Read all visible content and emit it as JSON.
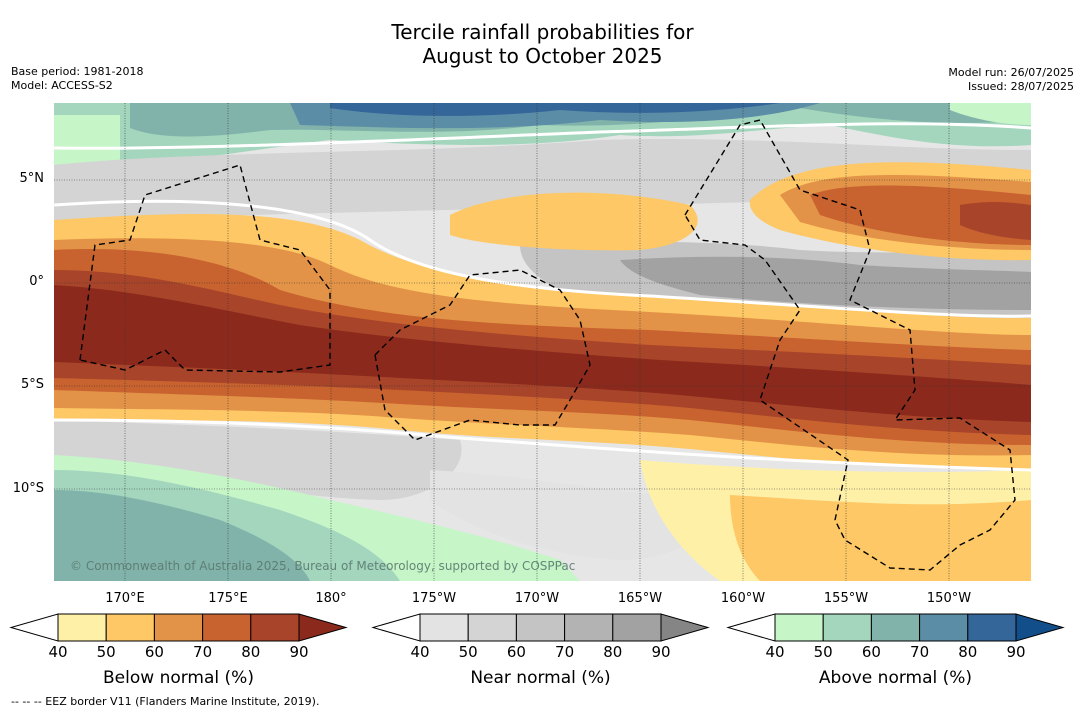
{
  "header": {
    "title_line1": "Tercile rainfall probabilities for",
    "title_line2": "August to October 2025",
    "base_period": "Base period: 1981-2018",
    "model": "Model: ACCESS-S2",
    "model_run": "Model run: 26/07/2025",
    "issued": "Issued: 28/07/2025"
  },
  "map": {
    "lat_labels": [
      "5°N",
      "0°",
      "5°S",
      "10°S"
    ],
    "lon_labels": [
      "170°E",
      "175°E",
      "180°",
      "175°W",
      "170°W",
      "165°W",
      "160°W",
      "155°W",
      "150°W"
    ],
    "copyright": "© Commonwealth of Australia 2025, Bureau of Meteorology, supported by COSPPac"
  },
  "colorbars": [
    {
      "title": "Below normal (%)",
      "ticks": [
        "40",
        "50",
        "60",
        "70",
        "80",
        "90"
      ],
      "colors": [
        "#fff0a8",
        "#fdc865",
        "#e39347",
        "#c8622f",
        "#a8442a",
        "#8b2a1c"
      ]
    },
    {
      "title": "Near normal (%)",
      "ticks": [
        "40",
        "50",
        "60",
        "70",
        "80",
        "90"
      ],
      "colors": [
        "#e3e3e3",
        "#d4d4d4",
        "#c4c4c4",
        "#b3b3b3",
        "#a2a2a2",
        "#858585"
      ]
    },
    {
      "title": "Above normal (%)",
      "ticks": [
        "40",
        "50",
        "60",
        "70",
        "80",
        "90"
      ],
      "colors": [
        "#c6f5c8",
        "#a3d6bd",
        "#82b3ab",
        "#5b8ea6",
        "#35669a",
        "#124e8a"
      ]
    }
  ],
  "footer": {
    "eez_note": "--  --  -- EEZ border V11 (Flanders Marine Institute, 2019)."
  }
}
